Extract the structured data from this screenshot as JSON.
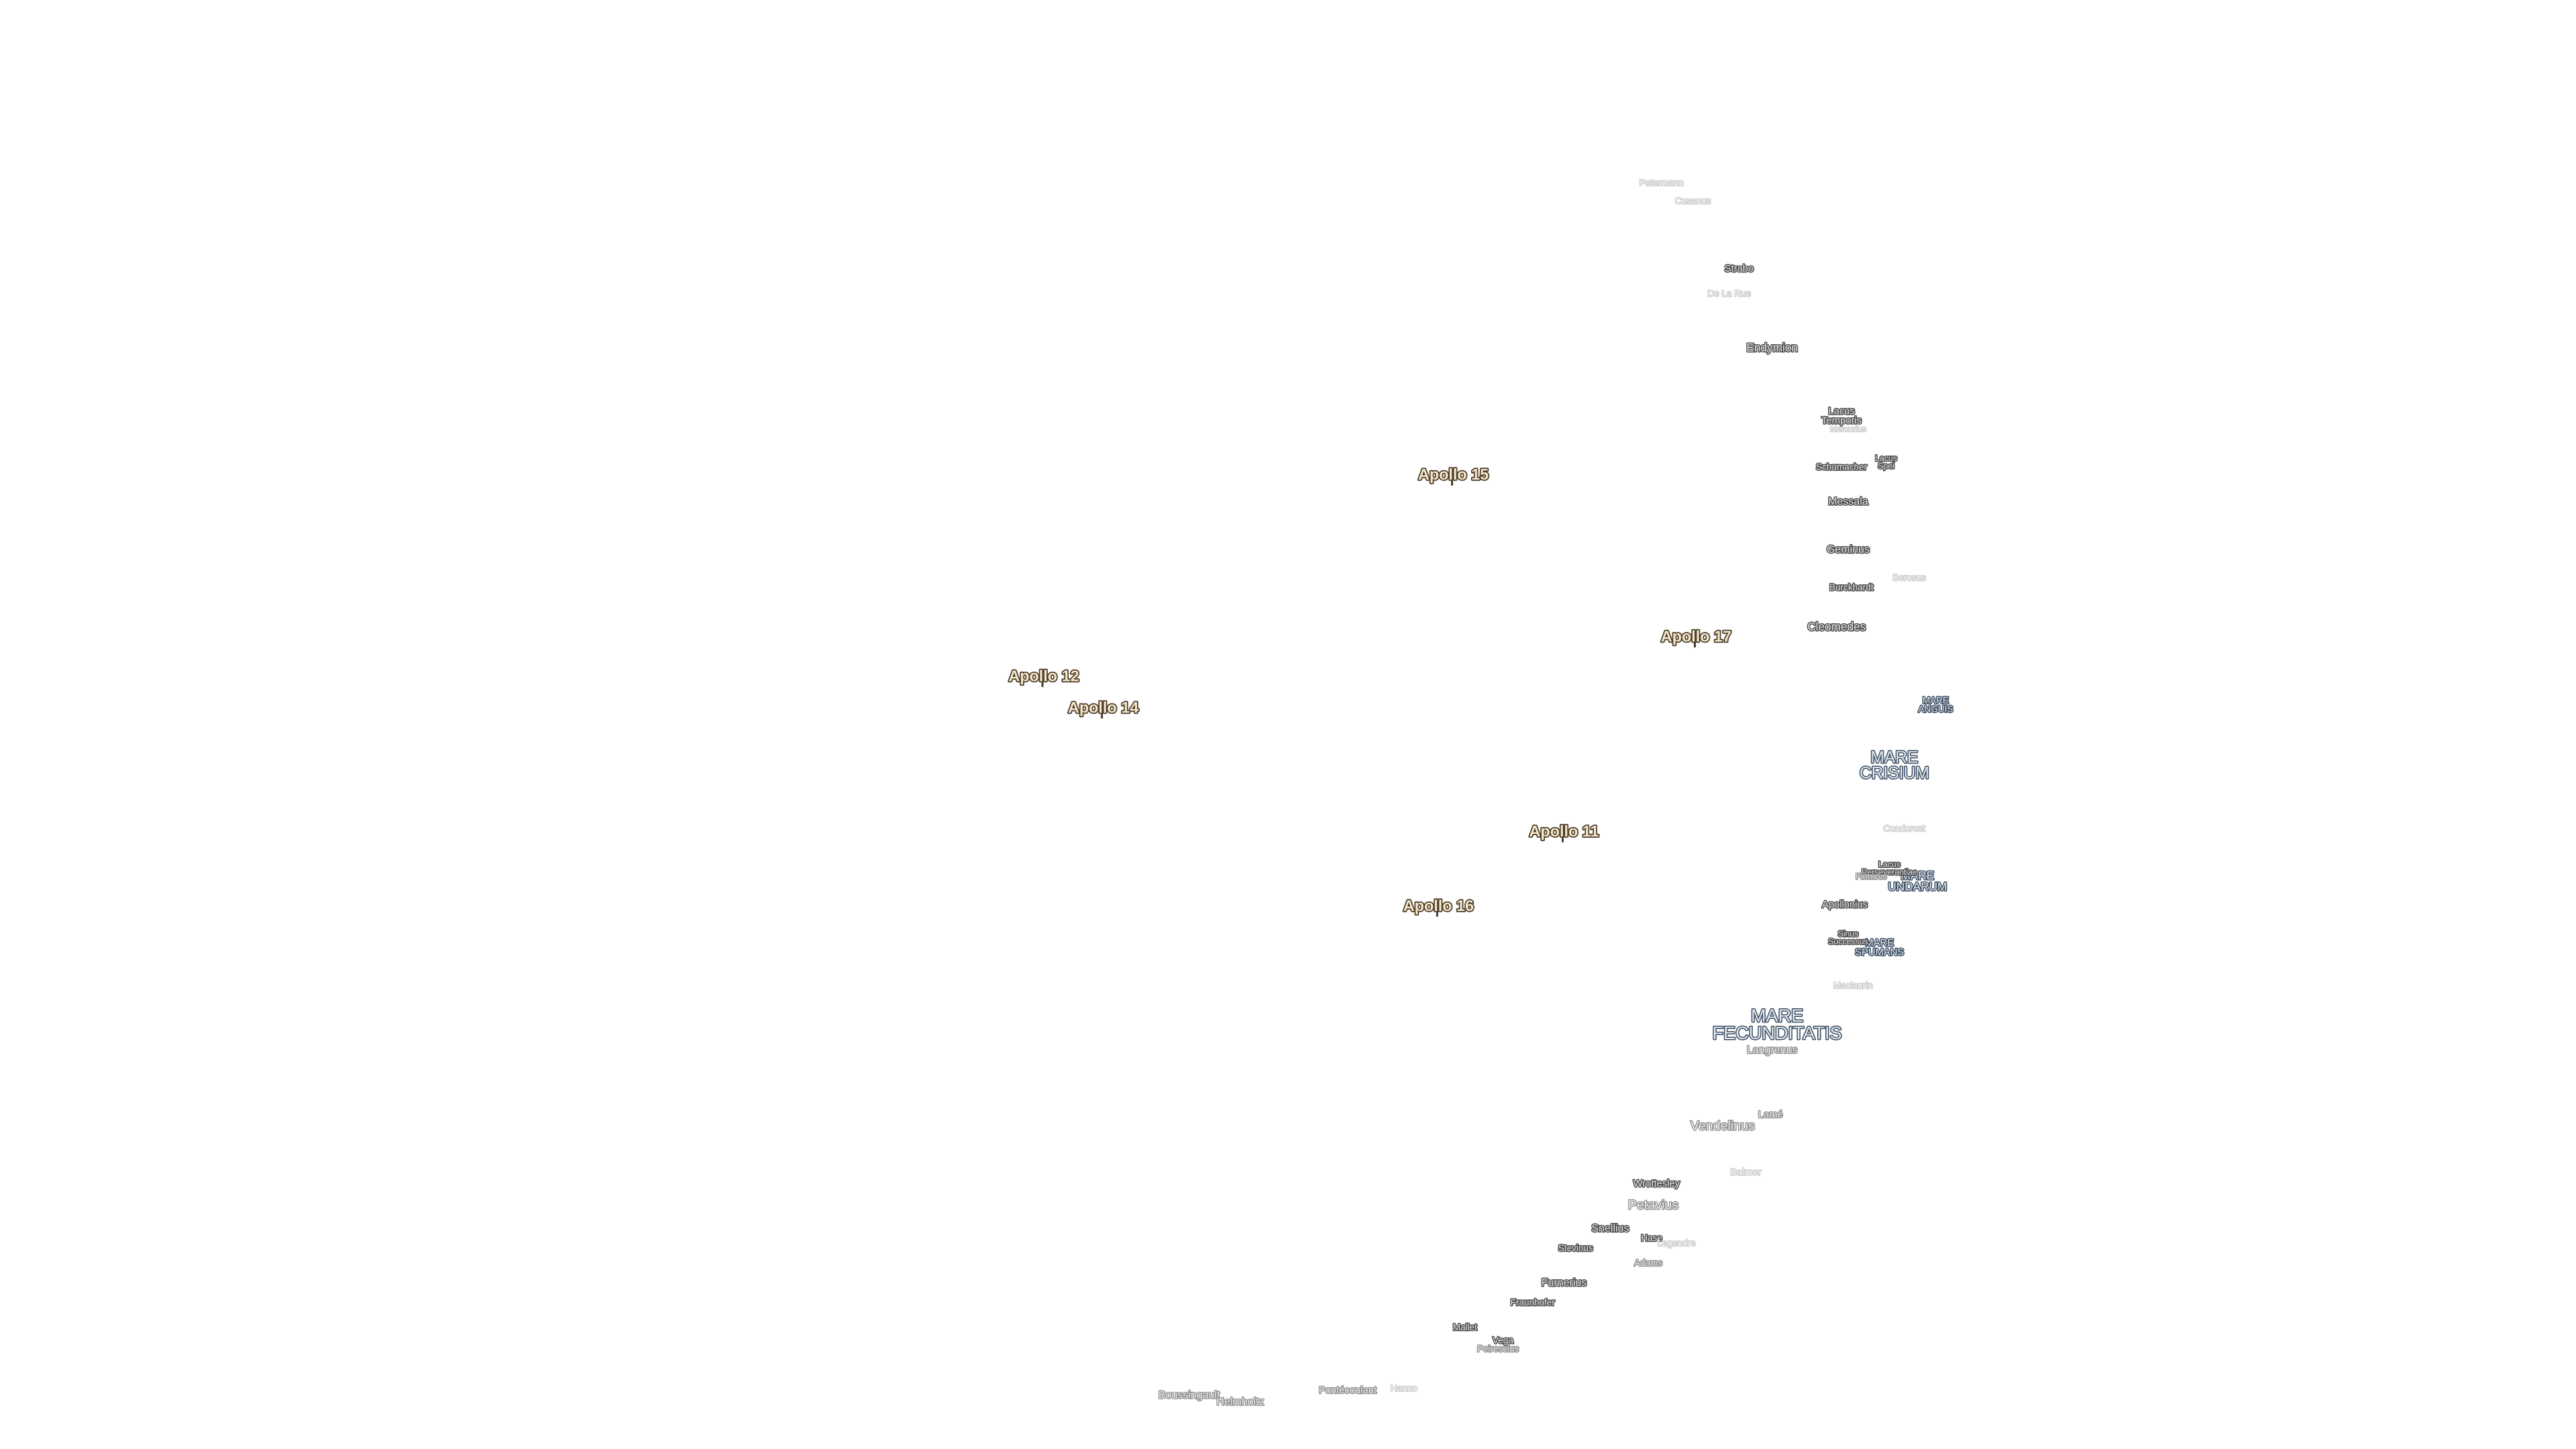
{
  "apollo_sites": [
    "Apollo 15",
    "Apollo 17",
    "Apollo 12",
    "Apollo 14",
    "Apollo 11",
    "Apollo 16"
  ],
  "maria": [
    [
      "MARE",
      "ANGUIS"
    ],
    [
      "MARE",
      "CRISIUM"
    ],
    [
      "MARE",
      "UNDARUM"
    ],
    [
      "MARE",
      "SPUMANS"
    ],
    [
      "MARE",
      "FECUNDITATIS"
    ]
  ],
  "features": [
    [
      "Petermann"
    ],
    [
      "Cusanus"
    ],
    [
      "Strabo"
    ],
    [
      "De La Rue"
    ],
    [
      "Endymion"
    ],
    [
      "Lacus",
      "Temporis"
    ],
    [
      "Mercurius"
    ],
    [
      "Lacus",
      "Spei"
    ],
    [
      "Schumacher"
    ],
    [
      "Messala"
    ],
    [
      "Geminus"
    ],
    [
      "Burckhardt"
    ],
    [
      "Berosus"
    ],
    [
      "Cleomedes"
    ],
    [
      "Condorcet"
    ],
    [
      "Lacus",
      "Perseverantiae"
    ],
    [
      "Firmicus"
    ],
    [
      "Apollonius"
    ],
    [
      "Sinus",
      "Successus"
    ],
    [
      "Maclaurin"
    ],
    [
      "Langrenus"
    ],
    [
      "Lamé"
    ],
    [
      "Vendelinus"
    ],
    [
      "Balmer"
    ],
    [
      "Wrottesley"
    ],
    [
      "Petavius"
    ],
    [
      "Snellius"
    ],
    [
      "Hase"
    ],
    [
      "Legendre"
    ],
    [
      "Stevinus"
    ],
    [
      "Adams"
    ],
    [
      "Furnerius"
    ],
    [
      "Fraunhofer"
    ],
    [
      "Mallet"
    ],
    [
      "Vega"
    ],
    [
      "Peirescius"
    ],
    [
      "Boussingault"
    ],
    [
      "Helmholtz"
    ],
    [
      "Pontécoulant"
    ],
    [
      "Hanno"
    ]
  ]
}
